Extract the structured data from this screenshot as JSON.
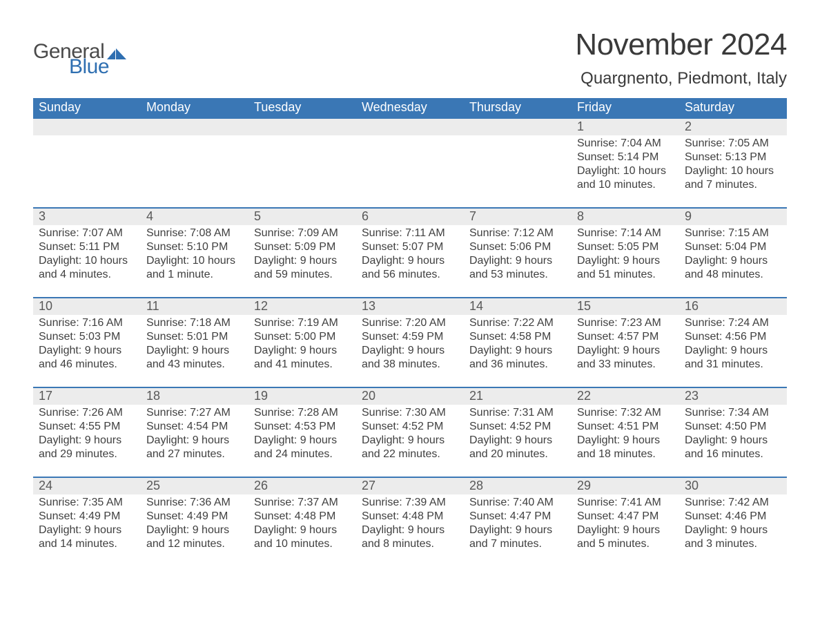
{
  "brand": {
    "general": "General",
    "blue": "Blue",
    "accent": "#2f6fb1",
    "text": "#4a4a4a"
  },
  "title": "November 2024",
  "location": "Quargnento, Piedmont, Italy",
  "colors": {
    "header_bg": "#3a77b5",
    "header_fg": "#ffffff",
    "daynum_bg": "#ececec",
    "daynum_border": "#3a77b5",
    "body_bg": "#ffffff",
    "text": "#3f3f3f"
  },
  "layout": {
    "columns": 7,
    "rows": 5,
    "first_weekday_index": 5
  },
  "days_of_week": [
    "Sunday",
    "Monday",
    "Tuesday",
    "Wednesday",
    "Thursday",
    "Friday",
    "Saturday"
  ],
  "days": [
    {
      "n": 1,
      "sunrise": "7:04 AM",
      "sunset": "5:14 PM",
      "daylight": "10 hours and 10 minutes."
    },
    {
      "n": 2,
      "sunrise": "7:05 AM",
      "sunset": "5:13 PM",
      "daylight": "10 hours and 7 minutes."
    },
    {
      "n": 3,
      "sunrise": "7:07 AM",
      "sunset": "5:11 PM",
      "daylight": "10 hours and 4 minutes."
    },
    {
      "n": 4,
      "sunrise": "7:08 AM",
      "sunset": "5:10 PM",
      "daylight": "10 hours and 1 minute."
    },
    {
      "n": 5,
      "sunrise": "7:09 AM",
      "sunset": "5:09 PM",
      "daylight": "9 hours and 59 minutes."
    },
    {
      "n": 6,
      "sunrise": "7:11 AM",
      "sunset": "5:07 PM",
      "daylight": "9 hours and 56 minutes."
    },
    {
      "n": 7,
      "sunrise": "7:12 AM",
      "sunset": "5:06 PM",
      "daylight": "9 hours and 53 minutes."
    },
    {
      "n": 8,
      "sunrise": "7:14 AM",
      "sunset": "5:05 PM",
      "daylight": "9 hours and 51 minutes."
    },
    {
      "n": 9,
      "sunrise": "7:15 AM",
      "sunset": "5:04 PM",
      "daylight": "9 hours and 48 minutes."
    },
    {
      "n": 10,
      "sunrise": "7:16 AM",
      "sunset": "5:03 PM",
      "daylight": "9 hours and 46 minutes."
    },
    {
      "n": 11,
      "sunrise": "7:18 AM",
      "sunset": "5:01 PM",
      "daylight": "9 hours and 43 minutes."
    },
    {
      "n": 12,
      "sunrise": "7:19 AM",
      "sunset": "5:00 PM",
      "daylight": "9 hours and 41 minutes."
    },
    {
      "n": 13,
      "sunrise": "7:20 AM",
      "sunset": "4:59 PM",
      "daylight": "9 hours and 38 minutes."
    },
    {
      "n": 14,
      "sunrise": "7:22 AM",
      "sunset": "4:58 PM",
      "daylight": "9 hours and 36 minutes."
    },
    {
      "n": 15,
      "sunrise": "7:23 AM",
      "sunset": "4:57 PM",
      "daylight": "9 hours and 33 minutes."
    },
    {
      "n": 16,
      "sunrise": "7:24 AM",
      "sunset": "4:56 PM",
      "daylight": "9 hours and 31 minutes."
    },
    {
      "n": 17,
      "sunrise": "7:26 AM",
      "sunset": "4:55 PM",
      "daylight": "9 hours and 29 minutes."
    },
    {
      "n": 18,
      "sunrise": "7:27 AM",
      "sunset": "4:54 PM",
      "daylight": "9 hours and 27 minutes."
    },
    {
      "n": 19,
      "sunrise": "7:28 AM",
      "sunset": "4:53 PM",
      "daylight": "9 hours and 24 minutes."
    },
    {
      "n": 20,
      "sunrise": "7:30 AM",
      "sunset": "4:52 PM",
      "daylight": "9 hours and 22 minutes."
    },
    {
      "n": 21,
      "sunrise": "7:31 AM",
      "sunset": "4:52 PM",
      "daylight": "9 hours and 20 minutes."
    },
    {
      "n": 22,
      "sunrise": "7:32 AM",
      "sunset": "4:51 PM",
      "daylight": "9 hours and 18 minutes."
    },
    {
      "n": 23,
      "sunrise": "7:34 AM",
      "sunset": "4:50 PM",
      "daylight": "9 hours and 16 minutes."
    },
    {
      "n": 24,
      "sunrise": "7:35 AM",
      "sunset": "4:49 PM",
      "daylight": "9 hours and 14 minutes."
    },
    {
      "n": 25,
      "sunrise": "7:36 AM",
      "sunset": "4:49 PM",
      "daylight": "9 hours and 12 minutes."
    },
    {
      "n": 26,
      "sunrise": "7:37 AM",
      "sunset": "4:48 PM",
      "daylight": "9 hours and 10 minutes."
    },
    {
      "n": 27,
      "sunrise": "7:39 AM",
      "sunset": "4:48 PM",
      "daylight": "9 hours and 8 minutes."
    },
    {
      "n": 28,
      "sunrise": "7:40 AM",
      "sunset": "4:47 PM",
      "daylight": "9 hours and 7 minutes."
    },
    {
      "n": 29,
      "sunrise": "7:41 AM",
      "sunset": "4:47 PM",
      "daylight": "9 hours and 5 minutes."
    },
    {
      "n": 30,
      "sunrise": "7:42 AM",
      "sunset": "4:46 PM",
      "daylight": "9 hours and 3 minutes."
    }
  ],
  "labels": {
    "sunrise": "Sunrise:",
    "sunset": "Sunset:",
    "daylight": "Daylight:"
  }
}
